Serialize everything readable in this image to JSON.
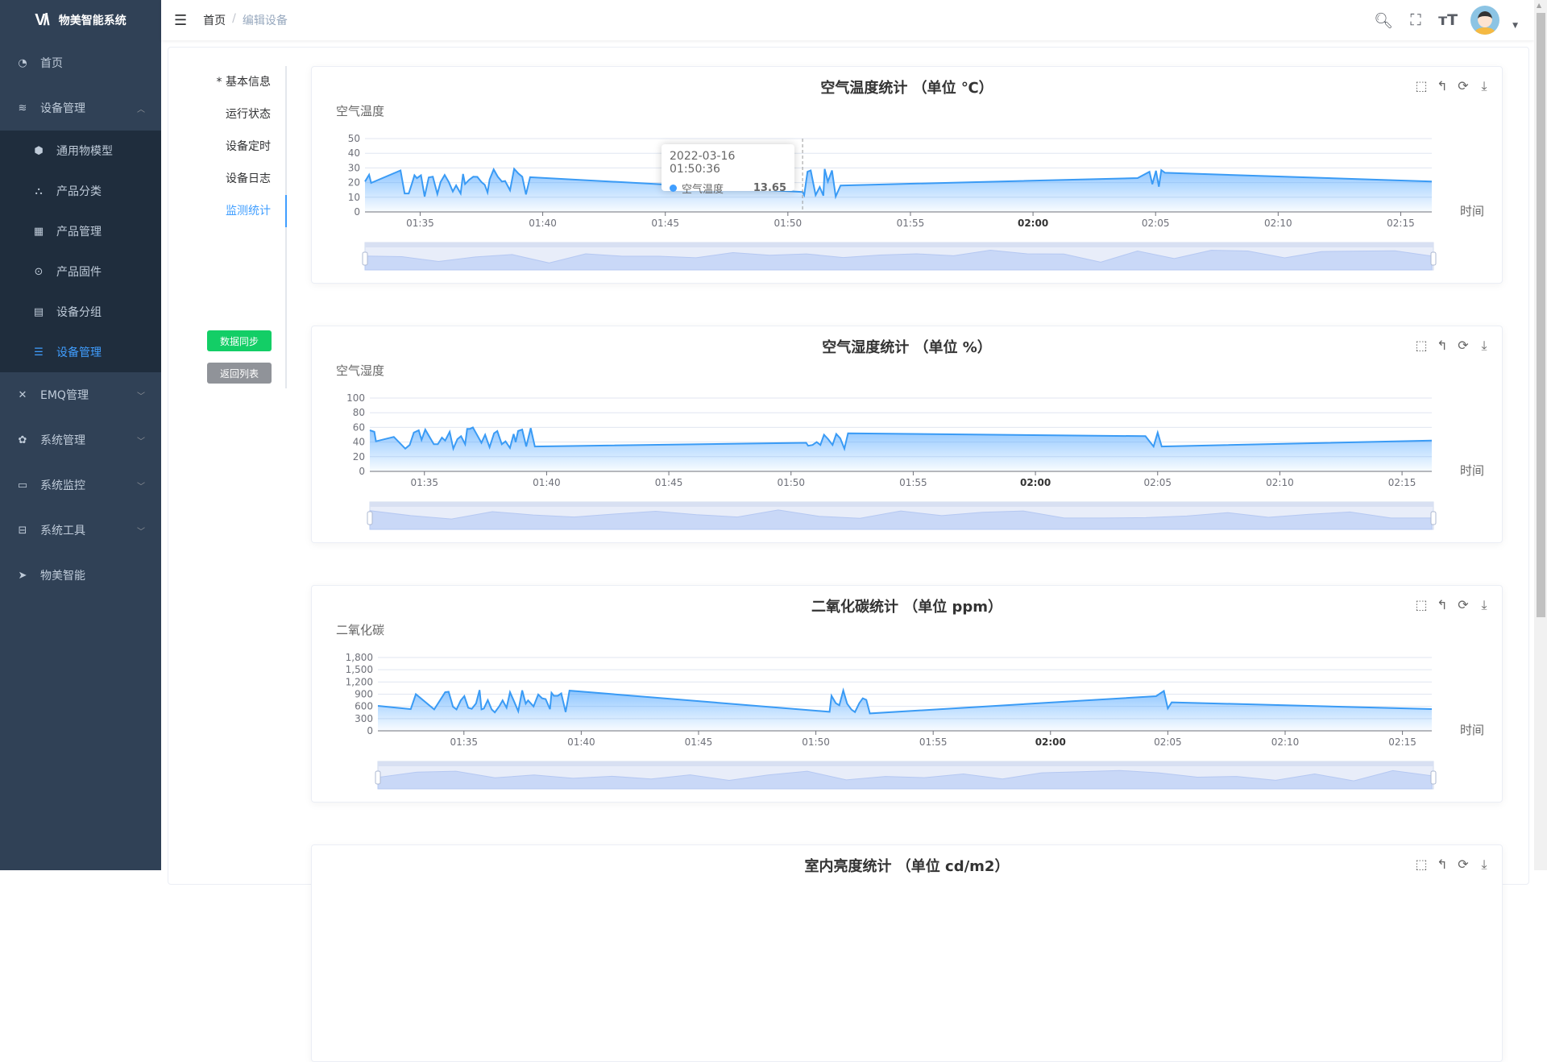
{
  "app": {
    "title": "物美智能系统",
    "logo": "WM"
  },
  "sidebar": {
    "items": [
      {
        "label": "首页",
        "icon": "dashboard-icon"
      },
      {
        "label": "设备管理",
        "icon": "layers-icon",
        "expanded": true,
        "children": [
          {
            "label": "通用物模型",
            "icon": "cube-icon"
          },
          {
            "label": "产品分类",
            "icon": "tree-icon"
          },
          {
            "label": "产品管理",
            "icon": "grid-icon"
          },
          {
            "label": "产品固件",
            "icon": "target-icon"
          },
          {
            "label": "设备分组",
            "icon": "table-icon"
          },
          {
            "label": "设备管理",
            "icon": "list-icon",
            "active": true
          }
        ]
      },
      {
        "label": "EMQ管理",
        "icon": "tool-icon"
      },
      {
        "label": "系统管理",
        "icon": "gear-icon"
      },
      {
        "label": "系统监控",
        "icon": "monitor-icon"
      },
      {
        "label": "系统工具",
        "icon": "toolbox-icon"
      },
      {
        "label": "物美智能",
        "icon": "send-icon"
      }
    ]
  },
  "header": {
    "breadcrumb": [
      "首页",
      "编辑设备"
    ],
    "sep": "/"
  },
  "tabs": [
    {
      "label": "* 基本信息"
    },
    {
      "label": "运行状态"
    },
    {
      "label": "设备定时"
    },
    {
      "label": "设备日志"
    },
    {
      "label": "监测统计",
      "active": true
    }
  ],
  "buttons": {
    "sync": "数据同步",
    "back": "返回列表"
  },
  "colors": {
    "accent": "#409eff",
    "sidebar": "#304156",
    "submenu": "#1f2d3d",
    "sync": "#13ce66",
    "line": "#3a9bf5"
  },
  "tooltip": {
    "time": "2022-03-16 01:50:36",
    "series": "空气温度",
    "value": "13.65"
  },
  "chart_data": [
    {
      "type": "area",
      "title": "空气温度统计 （单位 ℃）",
      "ylabel": "空气温度",
      "xlabel": "时间",
      "ylim": [
        0,
        50
      ],
      "yticks": [
        "0",
        "10",
        "20",
        "30",
        "40",
        "50"
      ],
      "yvals": [
        0,
        10,
        20,
        30,
        40,
        50
      ],
      "xticks": [
        "01:35",
        "01:40",
        "01:45",
        "01:50",
        "01:55",
        "02:00",
        "02:05",
        "02:10",
        "02:15"
      ],
      "grid": true,
      "datazoom": true,
      "series": [
        {
          "name": "空气温度",
          "points": [
            [
              "01:32:45",
              20.7
            ],
            [
              "01:32:55",
              25.4
            ],
            [
              "01:33:00",
              19.8
            ],
            [
              "01:34:12",
              28.3
            ],
            [
              "01:34:22",
              12.6
            ],
            [
              "01:34:32",
              12.6
            ],
            [
              "01:34:40",
              19.4
            ],
            [
              "01:34:46",
              25
            ],
            [
              "01:34:52",
              23
            ],
            [
              "01:35:02",
              25
            ],
            [
              "01:35:11",
              10.5
            ],
            [
              "01:35:21",
              23.5
            ],
            [
              "01:35:31",
              24
            ],
            [
              "01:35:42",
              12.2
            ],
            [
              "01:35:50",
              20.4
            ],
            [
              "01:36:00",
              25.2
            ],
            [
              "01:36:10",
              20.4
            ],
            [
              "01:36:20",
              13.9
            ],
            [
              "01:36:28",
              18.1
            ],
            [
              "01:36:39",
              12.6
            ],
            [
              "01:36:45",
              25.9
            ],
            [
              "01:36:50",
              19
            ],
            [
              "01:37:00",
              21.9
            ],
            [
              "01:37:10",
              24
            ],
            [
              "01:37:20",
              23.9
            ],
            [
              "01:37:30",
              20.4
            ],
            [
              "01:37:38",
              18.5
            ],
            [
              "01:37:45",
              13.3
            ],
            [
              "01:37:50",
              22.2
            ],
            [
              "01:38:00",
              29
            ],
            [
              "01:38:10",
              24
            ],
            [
              "01:38:20",
              20.7
            ],
            [
              "01:38:28",
              21.1
            ],
            [
              "01:38:40",
              14.8
            ],
            [
              "01:38:50",
              29.4
            ],
            [
              "01:39:00",
              26.3
            ],
            [
              "01:39:10",
              24
            ],
            [
              "01:39:19",
              11.9
            ],
            [
              "01:39:29",
              23.7
            ],
            [
              "01:50:36",
              13.65
            ],
            [
              "01:50:40",
              11.5
            ],
            [
              "01:50:48",
              27.4
            ],
            [
              "01:50:56",
              28.3
            ],
            [
              "01:51:08",
              11.5
            ],
            [
              "01:51:18",
              17
            ],
            [
              "01:51:27",
              11.1
            ],
            [
              "01:51:30",
              29.3
            ],
            [
              "01:51:38",
              20.7
            ],
            [
              "01:51:48",
              28.3
            ],
            [
              "01:51:57",
              10.5
            ],
            [
              "01:52:09",
              18
            ],
            [
              "02:04:16",
              23.1
            ],
            [
              "02:04:45",
              27.4
            ],
            [
              "02:04:52",
              18.9
            ],
            [
              "02:05:01",
              28.1
            ],
            [
              "02:05:08",
              17.2
            ],
            [
              "02:05:14",
              28.5
            ],
            [
              "02:05:23",
              26.7
            ],
            [
              "02:16:16",
              20.7
            ]
          ]
        }
      ]
    },
    {
      "type": "area",
      "title": "空气湿度统计 （单位 %）",
      "ylabel": "空气湿度",
      "xlabel": "时间",
      "ylim": [
        0,
        100
      ],
      "yticks": [
        "0",
        "20",
        "40",
        "60",
        "80",
        "100"
      ],
      "yvals": [
        0,
        20,
        40,
        60,
        80,
        100
      ],
      "xticks": [
        "01:35",
        "01:40",
        "01:45",
        "01:50",
        "01:55",
        "02:00",
        "02:05",
        "02:10",
        "02:15"
      ],
      "grid": true,
      "datazoom": true,
      "series": [
        {
          "name": "空气湿度",
          "points": [
            [
              "01:32:46",
              56
            ],
            [
              "01:32:57",
              54
            ],
            [
              "01:33:01",
              41
            ],
            [
              "01:33:45",
              47
            ],
            [
              "01:34:13",
              31
            ],
            [
              "01:34:24",
              36
            ],
            [
              "01:34:34",
              53
            ],
            [
              "01:34:46",
              56
            ],
            [
              "01:34:53",
              43
            ],
            [
              "01:35:02",
              57
            ],
            [
              "01:35:23",
              37
            ],
            [
              "01:35:33",
              37
            ],
            [
              "01:35:43",
              46
            ],
            [
              "01:35:51",
              42
            ],
            [
              "01:36:02",
              54
            ],
            [
              "01:36:11",
              31
            ],
            [
              "01:36:21",
              44
            ],
            [
              "01:36:30",
              48
            ],
            [
              "01:36:40",
              37
            ],
            [
              "01:36:45",
              58
            ],
            [
              "01:36:52",
              58
            ],
            [
              "01:36:59",
              60
            ],
            [
              "01:37:20",
              39
            ],
            [
              "01:37:29",
              50
            ],
            [
              "01:37:40",
              33
            ],
            [
              "01:37:51",
              52
            ],
            [
              "01:37:59",
              55
            ],
            [
              "01:38:10",
              37
            ],
            [
              "01:38:19",
              41
            ],
            [
              "01:38:30",
              32
            ],
            [
              "01:38:39",
              51
            ],
            [
              "01:38:44",
              40
            ],
            [
              "01:38:50",
              55
            ],
            [
              "01:39:00",
              57
            ],
            [
              "01:39:10",
              34
            ],
            [
              "01:39:21",
              59
            ],
            [
              "01:39:31",
              34
            ],
            [
              "01:50:37",
              39
            ],
            [
              "01:50:42",
              35
            ],
            [
              "01:50:53",
              36
            ],
            [
              "01:51:03",
              40
            ],
            [
              "01:51:12",
              36
            ],
            [
              "01:51:21",
              50
            ],
            [
              "01:51:31",
              44
            ],
            [
              "01:51:42",
              36
            ],
            [
              "01:51:51",
              51
            ],
            [
              "01:52:01",
              45
            ],
            [
              "01:52:11",
              31
            ],
            [
              "01:52:20",
              52
            ],
            [
              "02:04:30",
              48
            ],
            [
              "02:04:50",
              34
            ],
            [
              "02:05:00",
              53
            ],
            [
              "02:05:10",
              34
            ],
            [
              "02:16:13",
              42
            ]
          ]
        }
      ]
    },
    {
      "type": "area",
      "title": "二氧化碳统计 （单位 ppm）",
      "ylabel": "二氧化碳",
      "xlabel": "时间",
      "ylim": [
        0,
        1800
      ],
      "yticks": [
        "0",
        "300",
        "600",
        "900",
        "1,200",
        "1,500",
        "1,800"
      ],
      "yvals": [
        0,
        300,
        600,
        900,
        1200,
        1500,
        1800
      ],
      "xticks": [
        "01:35",
        "01:40",
        "01:45",
        "01:50",
        "01:55",
        "02:00",
        "02:05",
        "02:10",
        "02:15"
      ],
      "grid": true,
      "datazoom": true,
      "series": [
        {
          "name": "二氧化碳",
          "points": [
            [
              "01:31:20",
              613
            ],
            [
              "01:32:44",
              533
            ],
            [
              "01:32:57",
              900
            ],
            [
              "01:33:44",
              527
            ],
            [
              "01:34:12",
              947
            ],
            [
              "01:34:21",
              960
            ],
            [
              "01:34:32",
              593
            ],
            [
              "01:34:41",
              527
            ],
            [
              "01:34:52",
              747
            ],
            [
              "01:35:01",
              853
            ],
            [
              "01:35:11",
              567
            ],
            [
              "01:35:20",
              540
            ],
            [
              "01:35:31",
              673
            ],
            [
              "01:35:40",
              1000
            ],
            [
              "01:35:45",
              527
            ],
            [
              "01:35:51",
              547
            ],
            [
              "01:36:01",
              753
            ],
            [
              "01:36:11",
              527
            ],
            [
              "01:36:19",
              453
            ],
            [
              "01:36:30",
              600
            ],
            [
              "01:36:39",
              747
            ],
            [
              "01:36:49",
              567
            ],
            [
              "01:36:58",
              947
            ],
            [
              "01:37:08",
              727
            ],
            [
              "01:37:19",
              480
            ],
            [
              "01:37:29",
              993
            ],
            [
              "01:37:38",
              667
            ],
            [
              "01:37:44",
              747
            ],
            [
              "01:37:58",
              600
            ],
            [
              "01:38:10",
              893
            ],
            [
              "01:38:20",
              800
            ],
            [
              "01:38:29",
              780
            ],
            [
              "01:38:40",
              533
            ],
            [
              "01:38:44",
              933
            ],
            [
              "01:38:50",
              860
            ],
            [
              "01:39:00",
              860
            ],
            [
              "01:39:09",
              920
            ],
            [
              "01:39:20",
              460
            ],
            [
              "01:39:30",
              987
            ],
            [
              "01:50:35",
              467
            ],
            [
              "01:50:40",
              860
            ],
            [
              "01:50:51",
              680
            ],
            [
              "01:51:00",
              627
            ],
            [
              "01:51:10",
              993
            ],
            [
              "01:51:20",
              667
            ],
            [
              "01:51:31",
              520
            ],
            [
              "01:51:40",
              460
            ],
            [
              "01:51:51",
              680
            ],
            [
              "01:52:00",
              800
            ],
            [
              "01:52:09",
              760
            ],
            [
              "01:52:18",
              427
            ],
            [
              "02:04:30",
              850
            ],
            [
              "02:04:50",
              980
            ],
            [
              "02:05:00",
              550
            ],
            [
              "02:05:10",
              700
            ],
            [
              "02:16:15",
              535
            ]
          ]
        }
      ]
    },
    {
      "type": "area",
      "title": "室内亮度统计 （单位 cd/m2）"
    }
  ]
}
